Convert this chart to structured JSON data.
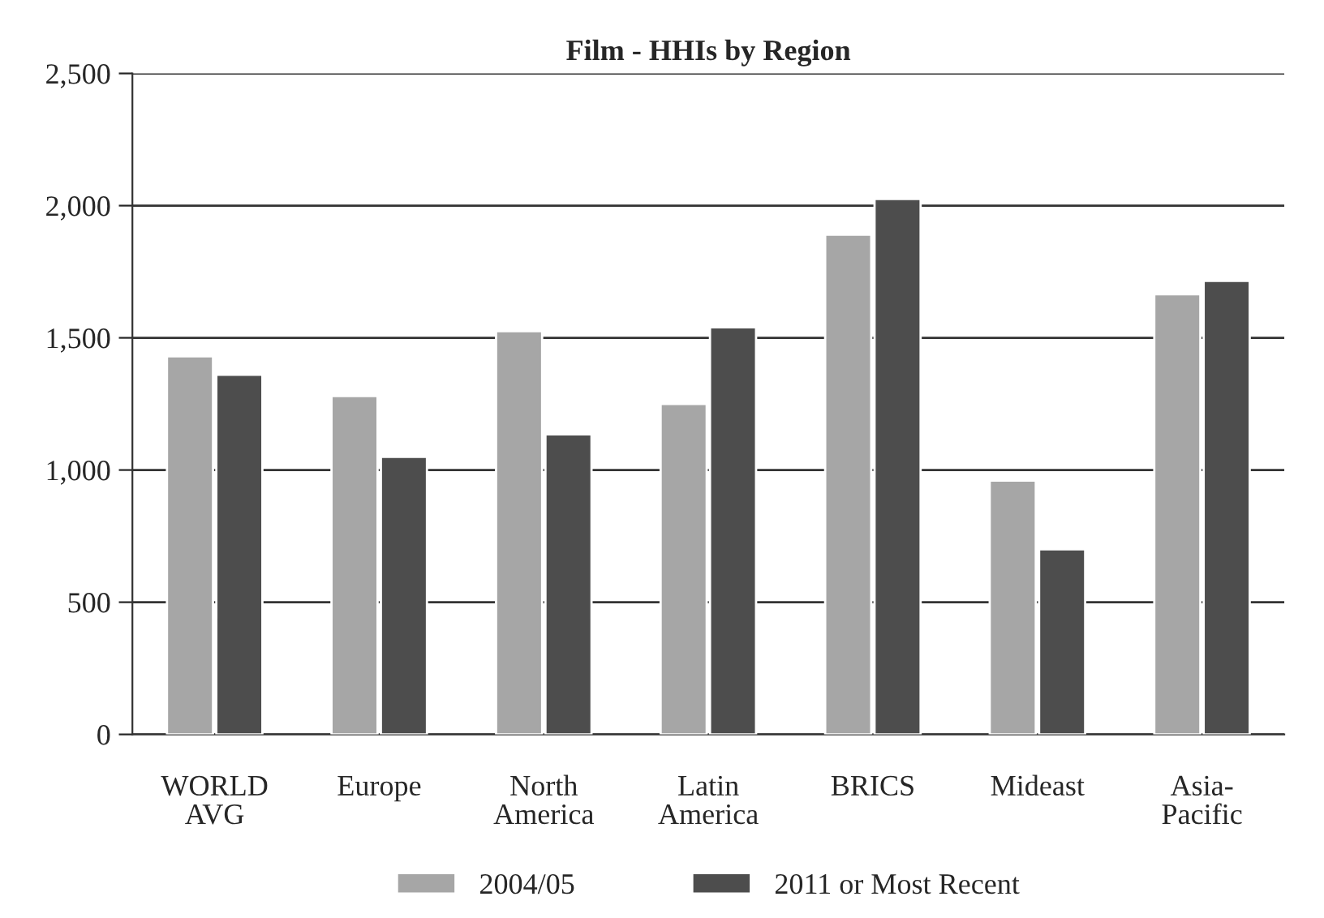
{
  "chart_data": {
    "type": "bar",
    "title": "Film - HHIs by Region",
    "categories": [
      "WORLD\nAVG",
      "Europe",
      "North\nAmerica",
      "Latin\nAmerica",
      "BRICS",
      "Mideast",
      "Asia-\nPacific"
    ],
    "series": [
      {
        "name": "2004/05",
        "color": "#a6a6a6",
        "values": [
          1430,
          1280,
          1525,
          1250,
          1890,
          960,
          1665
        ]
      },
      {
        "name": "2011 or Most Recent",
        "color": "#4d4d4d",
        "values": [
          1360,
          1050,
          1135,
          1540,
          2025,
          700,
          1715
        ]
      }
    ],
    "ylim": [
      0,
      2500
    ],
    "yticks": [
      {
        "value": 0,
        "label": "0"
      },
      {
        "value": 500,
        "label": "500"
      },
      {
        "value": 1000,
        "label": "1,000"
      },
      {
        "value": 1500,
        "label": "1,500"
      },
      {
        "value": 2000,
        "label": "2,000"
      },
      {
        "value": 2500,
        "label": "2,500"
      }
    ],
    "grid": "y",
    "legend": "bottom"
  }
}
